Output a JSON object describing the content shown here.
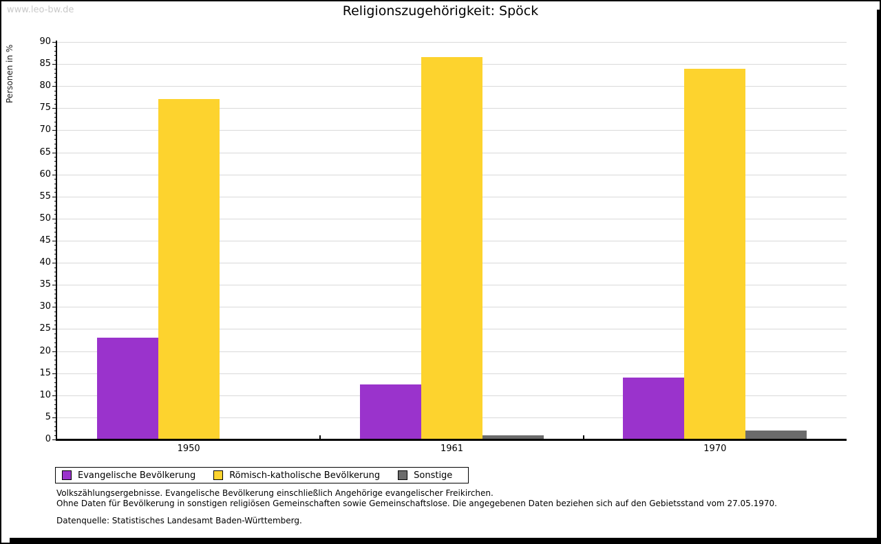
{
  "watermark": "www.leo-bw.de",
  "title": "Religionszugehörigkeit: Spöck",
  "chart_data": {
    "type": "bar",
    "title": "Religionszugehörigkeit: Spöck",
    "categories": [
      "1950",
      "1961",
      "1970"
    ],
    "series": [
      {
        "name": "Evangelische Bevölkerung",
        "color": "#9a33cc",
        "values": [
          23,
          12.5,
          14
        ]
      },
      {
        "name": "Römisch-katholische Bevölkerung",
        "color": "#fdd32e",
        "values": [
          77,
          86.5,
          84
        ]
      },
      {
        "name": "Sonstige",
        "color": "#6b6b6b",
        "values": [
          0,
          1,
          2
        ]
      }
    ],
    "xlabel": "",
    "ylabel": "Personen in %",
    "ylim": [
      0,
      90
    ],
    "ytick_step": 5,
    "yminor_step": 1,
    "grid": true,
    "legend_position": "bottom-left",
    "gridline_color": "#d9d9d9"
  },
  "footnotes": {
    "line1": "Volkszählungsergebnisse. Evangelische Bevölkerung einschließlich Angehörige evangelischer Freikirchen.",
    "line2": "Ohne Daten für Bevölkerung in sonstigen religiösen Gemeinschaften sowie Gemeinschaftslose. Die angegebenen Daten beziehen sich auf den Gebietsstand vom 27.05.1970.",
    "source": "Datenquelle: Statistisches Landesamt Baden-Württemberg."
  },
  "colors": {
    "evangelisch": "#9a33cc",
    "katholisch": "#fdd32e",
    "sonstige": "#6b6b6b",
    "gridline": "#d9d9d9",
    "watermark": "#c9c9c9",
    "frame": "#000000"
  }
}
